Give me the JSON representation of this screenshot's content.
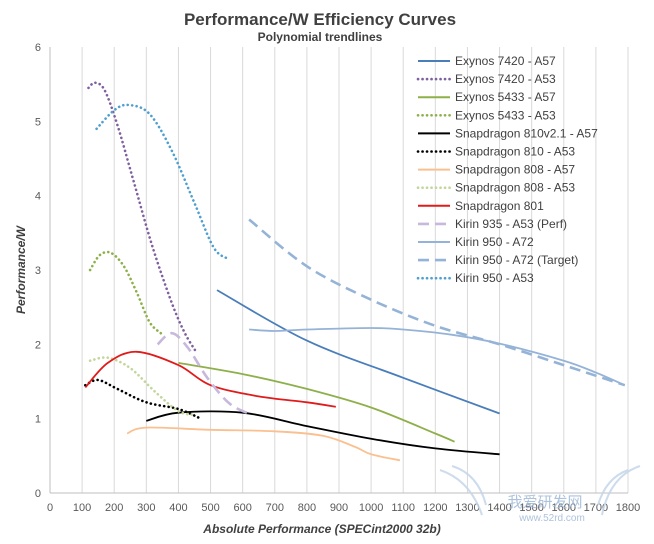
{
  "chart_data": {
    "type": "line",
    "title": "Performance/W Efficiency Curves",
    "subtitle": "Polynomial trendlines",
    "xlabel": "Absolute Performance (SPECint2000 32b)",
    "ylabel": "Performance/W",
    "xlim": [
      0,
      1800
    ],
    "ylim": [
      0,
      6
    ],
    "xticks": [
      0,
      100,
      200,
      300,
      400,
      500,
      600,
      700,
      800,
      900,
      1000,
      1100,
      1200,
      1300,
      1400,
      1500,
      1600,
      1700,
      1800
    ],
    "yticks": [
      0,
      1,
      2,
      3,
      4,
      5,
      6
    ],
    "grid": "vertical",
    "legend_position": "top-right",
    "series": [
      {
        "name": "Exynos 7420 - A57",
        "color": "#4a7ebb",
        "style": "solid",
        "x": [
          520,
          800,
          1100,
          1400
        ],
        "y": [
          2.73,
          2.05,
          1.55,
          1.07
        ]
      },
      {
        "name": "Exynos 7420 - A53",
        "color": "#7f5fa0",
        "style": "dotted",
        "x": [
          120,
          140,
          170,
          210,
          260,
          320,
          380,
          420,
          455
        ],
        "y": [
          5.45,
          5.52,
          5.42,
          4.95,
          4.2,
          3.3,
          2.55,
          2.15,
          1.9
        ]
      },
      {
        "name": "Exynos 5433 - A57",
        "color": "#8db04a",
        "style": "solid",
        "x": [
          400,
          600,
          800,
          1000,
          1200,
          1260
        ],
        "y": [
          1.75,
          1.6,
          1.4,
          1.15,
          0.8,
          0.69
        ]
      },
      {
        "name": "Exynos 5433 - A53",
        "color": "#8db04a",
        "style": "dotted",
        "x": [
          125,
          155,
          190,
          230,
          270,
          310,
          345
        ],
        "y": [
          3.0,
          3.2,
          3.23,
          3.05,
          2.7,
          2.3,
          2.15
        ]
      },
      {
        "name": "Snapdragon 810v2.1 - A57",
        "color": "#000000",
        "style": "solid",
        "x": [
          300,
          400,
          600,
          800,
          1000,
          1200,
          1400
        ],
        "y": [
          0.97,
          1.08,
          1.08,
          0.9,
          0.73,
          0.6,
          0.52
        ]
      },
      {
        "name": "Snapdragon 810 - A53",
        "color": "#000000",
        "style": "dotted",
        "x": [
          110,
          150,
          210,
          300,
          400,
          470
        ],
        "y": [
          1.45,
          1.52,
          1.4,
          1.22,
          1.13,
          1.0
        ]
      },
      {
        "name": "Snapdragon 808 - A57",
        "color": "#fac090",
        "style": "solid",
        "x": [
          240,
          300,
          500,
          700,
          850,
          950,
          1000,
          1090
        ],
        "y": [
          0.8,
          0.88,
          0.85,
          0.83,
          0.77,
          0.62,
          0.52,
          0.44
        ]
      },
      {
        "name": "Snapdragon 808 - A53",
        "color": "#c3d69b",
        "style": "dotted",
        "x": [
          125,
          180,
          250,
          330,
          400,
          450
        ],
        "y": [
          1.78,
          1.82,
          1.68,
          1.35,
          1.1,
          1.05
        ]
      },
      {
        "name": "Snapdragon 801",
        "color": "#e01b1b",
        "style": "solid",
        "x": [
          110,
          180,
          270,
          400,
          500,
          650,
          800,
          890
        ],
        "y": [
          1.42,
          1.75,
          1.9,
          1.72,
          1.45,
          1.3,
          1.22,
          1.16
        ]
      },
      {
        "name": "Kirin 935 - A53 (Perf)",
        "color": "#c8b8dc",
        "style": "dashed",
        "x": [
          335,
          380,
          430,
          490,
          560,
          630
        ],
        "y": [
          2.0,
          2.15,
          1.95,
          1.55,
          1.2,
          1.05
        ]
      },
      {
        "name": "Kirin 950 - A72",
        "color": "#95b3d7",
        "style": "solid",
        "x": [
          620,
          700,
          800,
          1000,
          1100,
          1250,
          1400,
          1600,
          1700,
          1790
        ],
        "y": [
          2.2,
          2.18,
          2.2,
          2.22,
          2.2,
          2.13,
          2.01,
          1.78,
          1.62,
          1.45
        ]
      },
      {
        "name": "Kirin 950 - A72 (Target)",
        "color": "#95b3d7",
        "style": "dashed",
        "x": [
          620,
          800,
          1000,
          1200,
          1400,
          1600,
          1790
        ],
        "y": [
          3.68,
          3.05,
          2.6,
          2.25,
          2.0,
          1.72,
          1.45
        ]
      },
      {
        "name": "Kirin 950 - A53",
        "color": "#4f9fd0",
        "style": "dotted",
        "x": [
          145,
          200,
          245,
          310,
          380,
          450,
          510,
          555
        ],
        "y": [
          4.9,
          5.15,
          5.22,
          5.1,
          4.6,
          3.9,
          3.3,
          3.15
        ]
      }
    ]
  },
  "watermark": {
    "brand": "我爱研发网",
    "url": "www.52rd.com"
  }
}
